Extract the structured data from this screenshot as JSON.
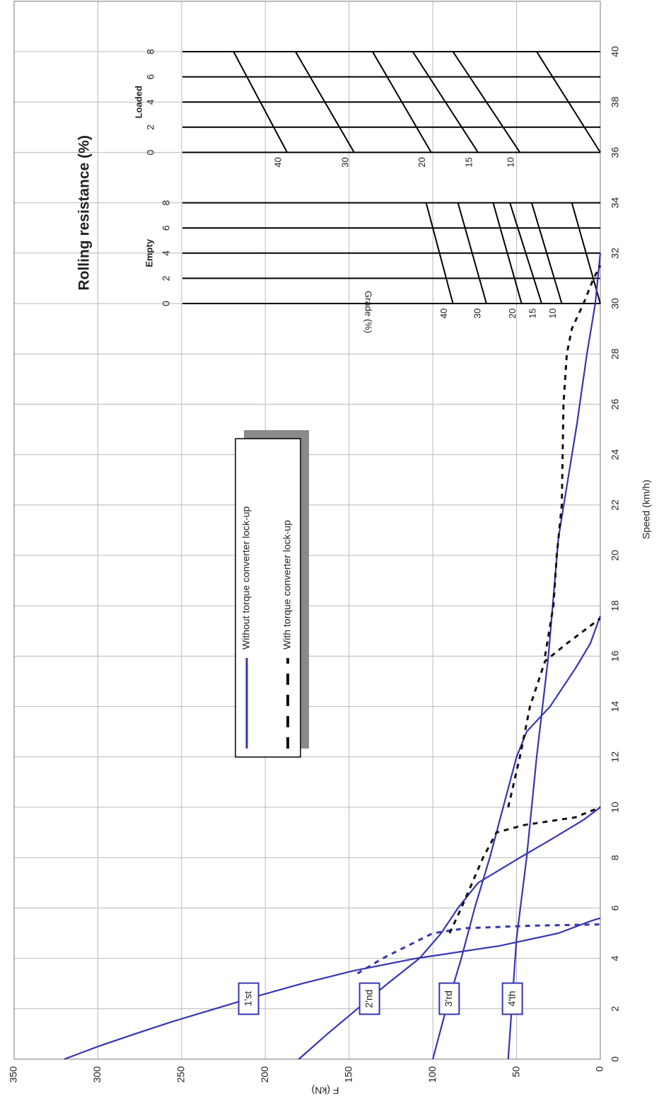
{
  "chart_data": {
    "type": "line",
    "x_label": "Speed (km/h)",
    "y_label": "F (kN)",
    "xlim": [
      0,
      42
    ],
    "ylim": [
      0,
      350
    ],
    "xticks": [
      0,
      2,
      4,
      6,
      8,
      10,
      12,
      14,
      16,
      18,
      20,
      22,
      24,
      26,
      28,
      30,
      32,
      34,
      36,
      38,
      40
    ],
    "yticks": [
      0,
      50,
      100,
      150,
      200,
      250,
      300,
      350
    ],
    "grid": true,
    "legend": [
      {
        "name": "Without torque converter lock-up",
        "color": "#3535b5",
        "dash": false
      },
      {
        "name": "With torque converter lock-up",
        "color": "#111111",
        "dash": true
      }
    ],
    "series": [
      {
        "name": "1'st",
        "color": "#3535b5",
        "dash": false,
        "x": [
          0,
          0.5,
          1,
          1.5,
          2,
          2.5,
          3,
          3.5,
          4,
          4.5,
          5,
          5.5,
          5.6
        ],
        "values": [
          320,
          300,
          278,
          255,
          230,
          205,
          178,
          148,
          110,
          60,
          25,
          5,
          0
        ]
      },
      {
        "name": "2'nd",
        "color": "#3535b5",
        "dash": false,
        "x": [
          0,
          1,
          2,
          3,
          4,
          5,
          6,
          7,
          8,
          8.7,
          9.5,
          10
        ],
        "values": [
          180,
          163,
          145,
          127,
          108,
          95,
          85,
          73,
          48,
          30,
          10,
          0
        ]
      },
      {
        "name": "3'rd",
        "color": "#3535b5",
        "dash": false,
        "x": [
          0,
          2,
          4,
          6,
          8,
          10,
          12,
          13,
          14,
          15.5,
          16.5,
          17.6
        ],
        "values": [
          100,
          92,
          83,
          75,
          66,
          58,
          50,
          44,
          30,
          15,
          6,
          0
        ]
      },
      {
        "name": "4'th",
        "color": "#3535b5",
        "dash": false,
        "x": [
          0,
          4.8,
          8,
          12,
          16,
          20.7,
          25.2,
          28,
          30,
          32
        ],
        "values": [
          55,
          50,
          44,
          38,
          31,
          25,
          14,
          8,
          3,
          0
        ]
      },
      {
        "color": "#3535b5",
        "dash": true,
        "x": [
          3.4,
          4,
          4.5,
          5,
          5.2,
          5.3,
          5.35
        ],
        "values": [
          145,
          130,
          115,
          100,
          80,
          40,
          0
        ]
      },
      {
        "color": "#111111",
        "dash": true,
        "x": [
          5,
          6,
          8,
          9,
          9.3,
          9.6,
          10
        ],
        "values": [
          90,
          83,
          70,
          62,
          45,
          15,
          0
        ]
      },
      {
        "color": "#111111",
        "dash": true,
        "x": [
          10,
          12,
          14,
          15.8,
          16.5,
          17,
          17.5
        ],
        "values": [
          55,
          48,
          42,
          33,
          20,
          10,
          0
        ]
      },
      {
        "color": "#111111",
        "dash": true,
        "x": [
          16,
          18,
          20,
          22,
          26,
          28,
          29,
          30,
          31,
          31.5
        ],
        "values": [
          33,
          28,
          26,
          23,
          22,
          20,
          17,
          10,
          4,
          0
        ]
      }
    ],
    "rolling_resistance": {
      "title": "Rolling resistance (%)",
      "empty_label": "Empty",
      "loaded_label": "Loaded",
      "grade_label": "Grade (%)",
      "scale_ticks": [
        0,
        2,
        4,
        6,
        8
      ],
      "grades": [
        40,
        30,
        20,
        15,
        10,
        null
      ],
      "empty_lines": [
        [
          88,
          104
        ],
        [
          68,
          85
        ],
        [
          47,
          64
        ],
        [
          35,
          54
        ],
        [
          23,
          41
        ],
        [
          0,
          17
        ]
      ],
      "loaded_lines": [
        [
          187,
          219
        ],
        [
          147,
          182
        ],
        [
          101,
          136
        ],
        [
          73,
          112
        ],
        [
          48,
          88
        ],
        [
          0,
          38
        ]
      ]
    }
  }
}
